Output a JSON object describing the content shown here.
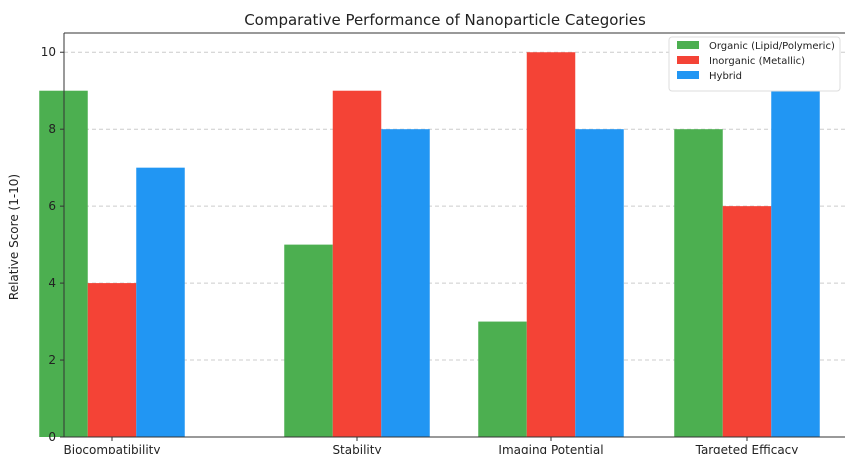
{
  "chart_data": {
    "type": "bar",
    "title": "Comparative Performance of Nanoparticle Categories",
    "xlabel": "",
    "ylabel": "Relative Score (1-10)",
    "categories": [
      "Biocompatibility",
      "Stability",
      "Imaging Potential",
      "Targeted Efficacy"
    ],
    "series": [
      {
        "name": "Organic (Lipid/Polymeric)",
        "color": "#4caf50",
        "values": [
          9,
          5,
          3,
          8
        ]
      },
      {
        "name": "Inorganic (Metallic)",
        "color": "#f44336",
        "values": [
          4,
          9,
          10,
          6
        ]
      },
      {
        "name": "Hybrid",
        "color": "#2196f3",
        "values": [
          7,
          8,
          8,
          9
        ]
      }
    ],
    "ylim": [
      0,
      10.5
    ],
    "yticks": [
      0,
      2,
      4,
      6,
      8,
      10
    ],
    "grid": true,
    "legend_position": "top-right"
  }
}
